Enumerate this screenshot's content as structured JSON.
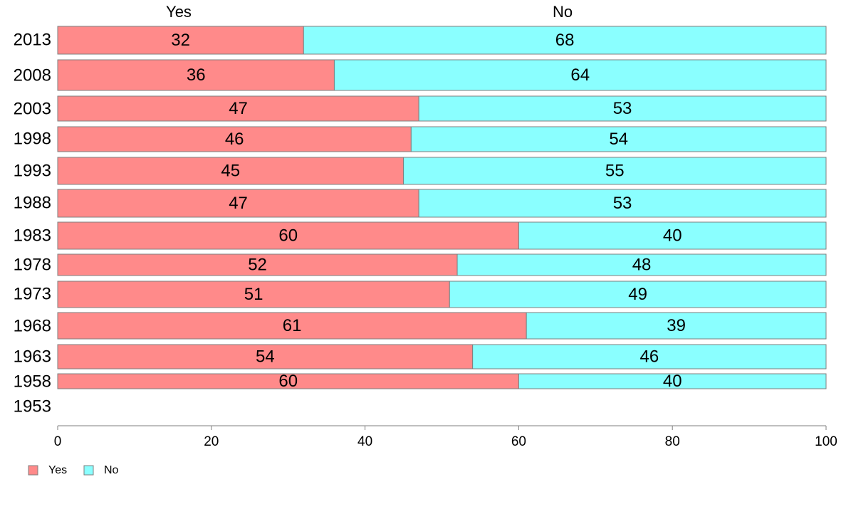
{
  "chart_data": {
    "type": "bar",
    "orientation": "horizontal",
    "stacked": true,
    "categories": [
      "2013",
      "2008",
      "2003",
      "1998",
      "1993",
      "1988",
      "1983",
      "1978",
      "1973",
      "1968",
      "1963",
      "1958",
      "1953"
    ],
    "series": [
      {
        "name": "Yes",
        "color": "#FF8A8A",
        "values": [
          32,
          36,
          47,
          46,
          45,
          47,
          60,
          52,
          51,
          61,
          54,
          60,
          null
        ]
      },
      {
        "name": "No",
        "color": "#8AFFFF",
        "values": [
          68,
          64,
          53,
          54,
          55,
          53,
          40,
          48,
          49,
          39,
          46,
          40,
          null
        ]
      }
    ],
    "column_headers": [
      "Yes",
      "No"
    ],
    "xlim": [
      0,
      100
    ],
    "xticks": [
      "0",
      "20",
      "40",
      "60",
      "80",
      "100"
    ],
    "legend": {
      "position": "bottom-left",
      "entries": [
        "Yes",
        "No"
      ]
    },
    "grid": false,
    "bar_outline_color": "#7f7f7f",
    "axis_color": "#7f7f7f"
  }
}
